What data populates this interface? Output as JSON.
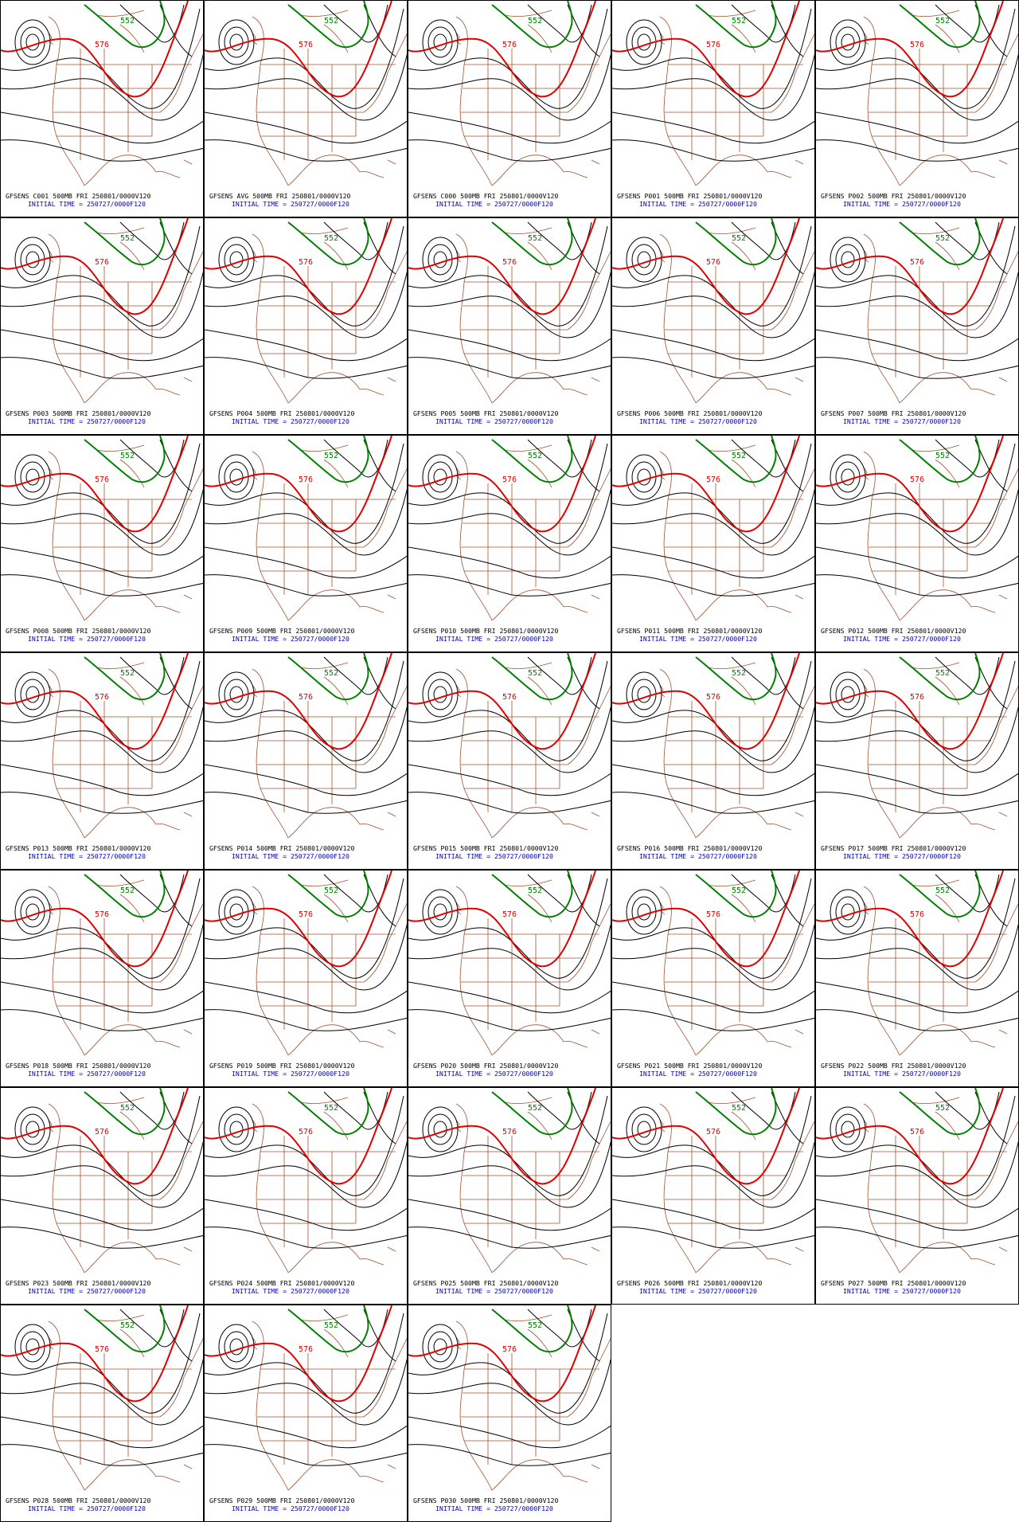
{
  "panels": [
    {
      "title": "GFSENS C001 500MB FRI 250801/0000V120",
      "init": "INITIAL TIME = 250727/0000F120",
      "red_label": "576",
      "green_label": "552"
    },
    {
      "title": "GFSENS AVG 500MB FRI 250801/0000V120",
      "init": "INITIAL TIME = 250727/0000F120",
      "red_label": "576",
      "green_label": "552"
    },
    {
      "title": "GFSENS C000 500MB FRI 250801/0000V120",
      "init": "INITIAL TIME = 250727/0000F120",
      "red_label": "576",
      "green_label": "552"
    },
    {
      "title": "GFSENS P001 500MB FRI 250801/0000V120",
      "init": "INITIAL TIME = 250727/0000F120",
      "red_label": "576",
      "green_label": "552"
    },
    {
      "title": "GFSENS P002 500MB FRI 250801/0000V120",
      "init": "INITIAL TIME = 250727/0000F120",
      "red_label": "576",
      "green_label": "552"
    },
    {
      "title": "GFSENS P003 500MB FRI 250801/0000V120",
      "init": "INITIAL TIME = 250727/0000F120",
      "red_label": "576",
      "green_label": "552"
    },
    {
      "title": "GFSENS P004 500MB FRI 250801/0000V120",
      "init": "INITIAL TIME = 250727/0000F120",
      "red_label": "576",
      "green_label": "552"
    },
    {
      "title": "GFSENS P005 500MB FRI 250801/0000V120",
      "init": "INITIAL TIME = 250727/0000F120",
      "red_label": "576",
      "green_label": "552"
    },
    {
      "title": "GFSENS P006 500MB FRI 250801/0000V120",
      "init": "INITIAL TIME = 250727/0000F120",
      "red_label": "576",
      "green_label": "552"
    },
    {
      "title": "GFSENS P007 500MB FRI 250801/0000V120",
      "init": "INITIAL TIME = 250727/0000F120",
      "red_label": "576",
      "green_label": "552"
    },
    {
      "title": "GFSENS P008 500MB FRI 250801/0000V120",
      "init": "INITIAL TIME = 250727/0000F120",
      "red_label": "576",
      "green_label": "552"
    },
    {
      "title": "GFSENS P009 500MB FRI 250801/0000V120",
      "init": "INITIAL TIME = 250727/0000F120",
      "red_label": "576",
      "green_label": "552"
    },
    {
      "title": "GFSENS P010 500MB FRI 250801/0000V120",
      "init": "INITIAL TIME = 250727/0000F120",
      "red_label": "576",
      "green_label": "552"
    },
    {
      "title": "GFSENS P011 500MB FRI 250801/0000V120",
      "init": "INITIAL TIME = 250727/0000F120",
      "red_label": "576",
      "green_label": "552"
    },
    {
      "title": "GFSENS P012 500MB FRI 250801/0000V120",
      "init": "INITIAL TIME = 250727/0000F120",
      "red_label": "576",
      "green_label": "552"
    },
    {
      "title": "GFSENS P013 500MB FRI 250801/0000V120",
      "init": "INITIAL TIME = 250727/0000F120",
      "red_label": "576",
      "green_label": "552"
    },
    {
      "title": "GFSENS P014 500MB FRI 250801/0000V120",
      "init": "INITIAL TIME = 250727/0000F120",
      "red_label": "576",
      "green_label": "552"
    },
    {
      "title": "GFSENS P015 500MB FRI 250801/0000V120",
      "init": "INITIAL TIME = 250727/0000F120",
      "red_label": "576",
      "green_label": "552"
    },
    {
      "title": "GFSENS P016 500MB FRI 250801/0000V120",
      "init": "INITIAL TIME = 250727/0000F120",
      "red_label": "576",
      "green_label": "552"
    },
    {
      "title": "GFSENS P017 500MB FRI 250801/0000V120",
      "init": "INITIAL TIME = 250727/0000F120",
      "red_label": "576",
      "green_label": "552"
    },
    {
      "title": "GFSENS P018 500MB FRI 250801/0000V120",
      "init": "INITIAL TIME = 250727/0000F120",
      "red_label": "576",
      "green_label": "552"
    },
    {
      "title": "GFSENS P019 500MB FRI 250801/0000V120",
      "init": "INITIAL TIME = 250727/0000F120",
      "red_label": "576",
      "green_label": "552"
    },
    {
      "title": "GFSENS P020 500MB FRI 250801/0000V120",
      "init": "INITIAL TIME = 250727/0000F120",
      "red_label": "576",
      "green_label": "552"
    },
    {
      "title": "GFSENS P021 500MB FRI 250801/0000V120",
      "init": "INITIAL TIME = 250727/0000F120",
      "red_label": "576",
      "green_label": "552"
    },
    {
      "title": "GFSENS P022 500MB FRI 250801/0000V120",
      "init": "INITIAL TIME = 250727/0000F120",
      "red_label": "576",
      "green_label": "552"
    },
    {
      "title": "GFSENS P023 500MB FRI 250801/0000V120",
      "init": "INITIAL TIME = 250727/0000F120",
      "red_label": "576",
      "green_label": "552"
    },
    {
      "title": "GFSENS P024 500MB FRI 250801/0000V120",
      "init": "INITIAL TIME = 250727/0000F120",
      "red_label": "576",
      "green_label": "552"
    },
    {
      "title": "GFSENS P025 500MB FRI 250801/0000V120",
      "init": "INITIAL TIME = 250727/0000F120",
      "red_label": "576",
      "green_label": "552"
    },
    {
      "title": "GFSENS P026 500MB FRI 250801/0000V120",
      "init": "INITIAL TIME = 250727/0000F120",
      "red_label": "576",
      "green_label": "552"
    },
    {
      "title": "GFSENS P027 500MB FRI 250801/0000V120",
      "init": "INITIAL TIME = 250727/0000F120",
      "red_label": "576",
      "green_label": "552"
    },
    {
      "title": "GFSENS P028 500MB FRI 250801/0000V120",
      "init": "INITIAL TIME = 250727/0000F120",
      "red_label": "576",
      "green_label": "552"
    },
    {
      "title": "GFSENS P029 500MB FRI 250801/0000V120",
      "init": "INITIAL TIME = 250727/0000F120",
      "red_label": "576",
      "green_label": "552"
    },
    {
      "title": "GFSENS P030 500MB FRI 250801/0000V120",
      "init": "INITIAL TIME = 250727/0000F120",
      "red_label": "576",
      "green_label": "552"
    }
  ]
}
